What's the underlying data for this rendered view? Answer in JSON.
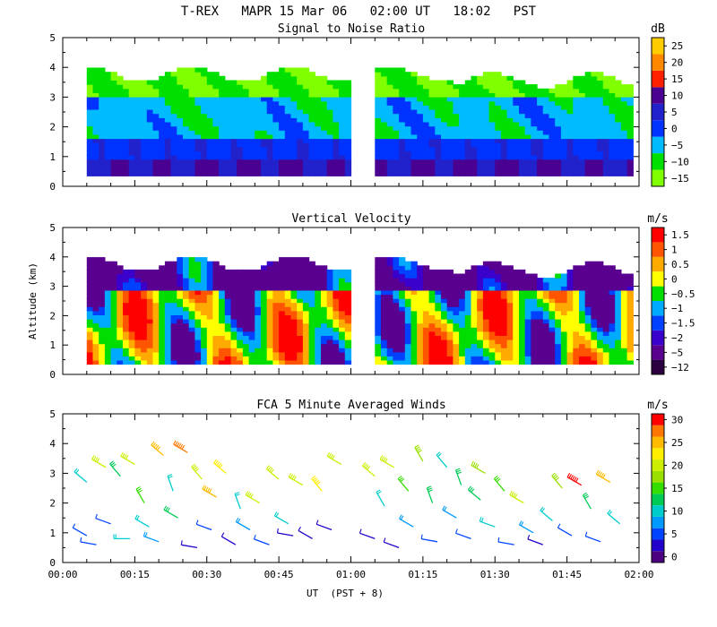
{
  "figure": {
    "title": "T-REX   MAPR 15 Mar 06   02:00 UT   18:02   PST",
    "xlabel": "UT  (PST + 8)",
    "ylabel": "Altitude (km)"
  },
  "chart_data": [
    {
      "type": "heatmap",
      "title": "Signal to Noise Ratio",
      "unit": "dB",
      "xlim": [
        "00:00",
        "02:00"
      ],
      "ylim": [
        0,
        5
      ],
      "y_ticks": [
        0,
        1,
        2,
        3,
        4,
        5
      ],
      "x_ticks": [
        "00:00",
        "00:15",
        "00:30",
        "00:45",
        "01:00",
        "01:15",
        "01:30",
        "01:45",
        "02:00"
      ],
      "data_gap": [
        "00:59",
        "01:05"
      ],
      "colorbar": {
        "levels": [
          -15,
          -10,
          -5,
          0,
          5,
          10,
          15,
          20,
          25
        ],
        "labels": [
          "−15",
          "−10",
          "−5",
          "0",
          "5",
          "10",
          "15",
          "20",
          "25"
        ],
        "colors": [
          "#80ff00",
          "#00e000",
          "#00bbff",
          "#0033ff",
          "#2222cc",
          "#4a0090",
          "#ff2000",
          "#ff8800",
          "#ffcc00"
        ]
      }
    },
    {
      "type": "heatmap",
      "title": "Vertical Velocity",
      "unit": "m/s",
      "xlim": [
        "00:00",
        "02:00"
      ],
      "ylim": [
        0,
        5
      ],
      "y_ticks": [
        0,
        1,
        2,
        3,
        4,
        5
      ],
      "data_gap": [
        "00:59",
        "01:05"
      ],
      "colorbar": {
        "levels": [
          -12,
          -5,
          -2,
          -1.5,
          -1,
          -0.5,
          0,
          0.5,
          1,
          1.5
        ],
        "labels": [
          "−12",
          "−5",
          "−2",
          "−1.5",
          "−1",
          "−0.5",
          "0",
          "0.5",
          "1",
          "1.5"
        ],
        "colors": [
          "#2a0040",
          "#5a0090",
          "#3a00cc",
          "#0040ff",
          "#00aaff",
          "#00dd00",
          "#ffff00",
          "#ffaa00",
          "#ff5500",
          "#ff0000"
        ]
      }
    },
    {
      "type": "scatter",
      "title": "FCA 5 Minute Averaged Winds",
      "unit": "m/s",
      "xlim": [
        "00:00",
        "02:00"
      ],
      "ylim": [
        0,
        5
      ],
      "y_ticks": [
        0,
        1,
        2,
        3,
        4,
        5
      ],
      "x_ticks": [
        "00:00",
        "00:15",
        "00:30",
        "00:45",
        "01:00",
        "01:15",
        "01:30",
        "01:45",
        "02:00"
      ],
      "colorbar": {
        "levels": [
          0,
          2.5,
          5,
          7.5,
          10,
          12.5,
          15,
          17.5,
          20,
          22.5,
          25,
          27.5,
          30
        ],
        "labels": [
          "0",
          "5",
          "10",
          "15",
          "20",
          "25",
          "30"
        ],
        "label_levels": [
          0,
          5,
          10,
          15,
          20,
          25,
          30
        ],
        "colors": [
          "#4a0080",
          "#2200cc",
          "#0044ff",
          "#0099ff",
          "#00cccc",
          "#00cc55",
          "#33dd00",
          "#99e000",
          "#ccee00",
          "#ffee00",
          "#ffbb00",
          "#ff7700",
          "#ff0000"
        ]
      },
      "wind_barbs": [
        {
          "t": "00:05",
          "alt": 0.9,
          "speed": 7,
          "dir": 300
        },
        {
          "t": "00:05",
          "alt": 2.7,
          "speed": 12,
          "dir": 310
        },
        {
          "t": "00:07",
          "alt": 0.6,
          "speed": 5,
          "dir": 280
        },
        {
          "t": "00:09",
          "alt": 3.2,
          "speed": 20,
          "dir": 300
        },
        {
          "t": "00:10",
          "alt": 1.3,
          "speed": 6,
          "dir": 290
        },
        {
          "t": "00:12",
          "alt": 2.9,
          "speed": 14,
          "dir": 320
        },
        {
          "t": "00:14",
          "alt": 0.8,
          "speed": 10,
          "dir": 270
        },
        {
          "t": "00:15",
          "alt": 3.3,
          "speed": 22,
          "dir": 300
        },
        {
          "t": "00:17",
          "alt": 2.0,
          "speed": 16,
          "dir": 330
        },
        {
          "t": "00:18",
          "alt": 1.2,
          "speed": 12,
          "dir": 300
        },
        {
          "t": "00:20",
          "alt": 0.7,
          "speed": 9,
          "dir": 290
        },
        {
          "t": "00:21",
          "alt": 3.6,
          "speed": 25,
          "dir": 310
        },
        {
          "t": "00:23",
          "alt": 2.4,
          "speed": 12,
          "dir": 340
        },
        {
          "t": "00:24",
          "alt": 1.5,
          "speed": 13,
          "dir": 300
        },
        {
          "t": "00:26",
          "alt": 3.7,
          "speed": 28,
          "dir": 300
        },
        {
          "t": "00:28",
          "alt": 0.5,
          "speed": 4,
          "dir": 280
        },
        {
          "t": "00:29",
          "alt": 2.8,
          "speed": 20,
          "dir": 320
        },
        {
          "t": "00:31",
          "alt": 1.1,
          "speed": 7,
          "dir": 290
        },
        {
          "t": "00:32",
          "alt": 2.2,
          "speed": 27,
          "dir": 300
        },
        {
          "t": "00:34",
          "alt": 3.0,
          "speed": 24,
          "dir": 310
        },
        {
          "t": "00:36",
          "alt": 0.6,
          "speed": 4,
          "dir": 300
        },
        {
          "t": "00:37",
          "alt": 1.8,
          "speed": 11,
          "dir": 340
        },
        {
          "t": "00:39",
          "alt": 1.1,
          "speed": 8,
          "dir": 300
        },
        {
          "t": "00:41",
          "alt": 2.0,
          "speed": 21,
          "dir": 300
        },
        {
          "t": "00:43",
          "alt": 0.6,
          "speed": 6,
          "dir": 290
        },
        {
          "t": "00:45",
          "alt": 2.8,
          "speed": 21,
          "dir": 310
        },
        {
          "t": "00:47",
          "alt": 1.3,
          "speed": 10,
          "dir": 300
        },
        {
          "t": "00:48",
          "alt": 0.9,
          "speed": 4,
          "dir": 280
        },
        {
          "t": "00:50",
          "alt": 2.6,
          "speed": 22,
          "dir": 300
        },
        {
          "t": "00:52",
          "alt": 0.8,
          "speed": 3,
          "dir": 300
        },
        {
          "t": "00:54",
          "alt": 2.4,
          "speed": 23,
          "dir": 320
        },
        {
          "t": "00:56",
          "alt": 1.1,
          "speed": 4,
          "dir": 290
        },
        {
          "t": "00:58",
          "alt": 3.3,
          "speed": 22,
          "dir": 300
        },
        {
          "t": "01:05",
          "alt": 0.8,
          "speed": 4,
          "dir": 290
        },
        {
          "t": "01:05",
          "alt": 2.9,
          "speed": 21,
          "dir": 310
        },
        {
          "t": "01:07",
          "alt": 1.9,
          "speed": 12,
          "dir": 330
        },
        {
          "t": "01:09",
          "alt": 3.2,
          "speed": 22,
          "dir": 300
        },
        {
          "t": "01:10",
          "alt": 0.5,
          "speed": 3,
          "dir": 290
        },
        {
          "t": "01:12",
          "alt": 2.4,
          "speed": 16,
          "dir": 320
        },
        {
          "t": "01:13",
          "alt": 1.2,
          "speed": 8,
          "dir": 300
        },
        {
          "t": "01:15",
          "alt": 3.4,
          "speed": 18,
          "dir": 330
        },
        {
          "t": "01:17",
          "alt": 2.0,
          "speed": 14,
          "dir": 340
        },
        {
          "t": "01:18",
          "alt": 0.7,
          "speed": 5,
          "dir": 280
        },
        {
          "t": "01:20",
          "alt": 3.2,
          "speed": 12,
          "dir": 320
        },
        {
          "t": "01:22",
          "alt": 1.5,
          "speed": 9,
          "dir": 300
        },
        {
          "t": "01:23",
          "alt": 2.6,
          "speed": 14,
          "dir": 340
        },
        {
          "t": "01:25",
          "alt": 0.8,
          "speed": 7,
          "dir": 290
        },
        {
          "t": "01:27",
          "alt": 2.1,
          "speed": 13,
          "dir": 310
        },
        {
          "t": "01:28",
          "alt": 3.0,
          "speed": 18,
          "dir": 300
        },
        {
          "t": "01:30",
          "alt": 1.2,
          "speed": 10,
          "dir": 290
        },
        {
          "t": "01:32",
          "alt": 2.4,
          "speed": 15,
          "dir": 320
        },
        {
          "t": "01:34",
          "alt": 0.6,
          "speed": 5,
          "dir": 280
        },
        {
          "t": "01:36",
          "alt": 2.0,
          "speed": 20,
          "dir": 300
        },
        {
          "t": "01:38",
          "alt": 1.0,
          "speed": 9,
          "dir": 300
        },
        {
          "t": "01:40",
          "alt": 0.6,
          "speed": 4,
          "dir": 290
        },
        {
          "t": "01:42",
          "alt": 1.4,
          "speed": 10,
          "dir": 310
        },
        {
          "t": "01:44",
          "alt": 2.5,
          "speed": 18,
          "dir": 320
        },
        {
          "t": "01:46",
          "alt": 0.9,
          "speed": 7,
          "dir": 300
        },
        {
          "t": "01:48",
          "alt": 2.6,
          "speed": 30,
          "dir": 300
        },
        {
          "t": "01:50",
          "alt": 1.8,
          "speed": 14,
          "dir": 330
        },
        {
          "t": "01:52",
          "alt": 0.7,
          "speed": 5,
          "dir": 290
        },
        {
          "t": "01:54",
          "alt": 2.7,
          "speed": 26,
          "dir": 300
        },
        {
          "t": "01:56",
          "alt": 1.3,
          "speed": 12,
          "dir": 310
        }
      ]
    }
  ]
}
